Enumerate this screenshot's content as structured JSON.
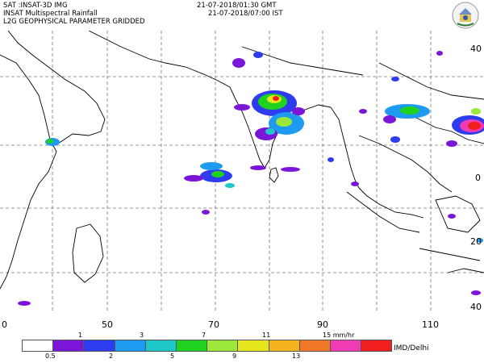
{
  "header": {
    "line1_left": "SAT :INSAT-3D IMG",
    "line2_left": "INSAT Multispectral Rainfall",
    "line3_left": "L2G GEOPHYSICAL PARAMETER GRIDDED",
    "line1_right": "21-07-2018/01:30 GMT",
    "line2_right": "21-07-2018/07:00 IST"
  },
  "map": {
    "lon_ticks": [
      "0",
      "50",
      "70",
      "90",
      "110"
    ],
    "lat_ticks": [
      "40",
      "0",
      "20",
      "40"
    ],
    "coastline_color": "#000000",
    "grid_color": "#777777"
  },
  "colorbar": {
    "top_labels": [
      "1",
      "3",
      "7",
      "11",
      "15 mm/hr"
    ],
    "bottom_labels": [
      "0.5",
      "2",
      "5",
      "9",
      "13"
    ],
    "colors": [
      "#ffffff",
      "#7b16d8",
      "#2e3cf0",
      "#1e9bf0",
      "#1ec8c8",
      "#1fd21f",
      "#9be83a",
      "#e6e61e",
      "#f5b41e",
      "#f07828",
      "#f03cb4",
      "#f01e1e"
    ]
  },
  "credit": "IMD/Delhi"
}
